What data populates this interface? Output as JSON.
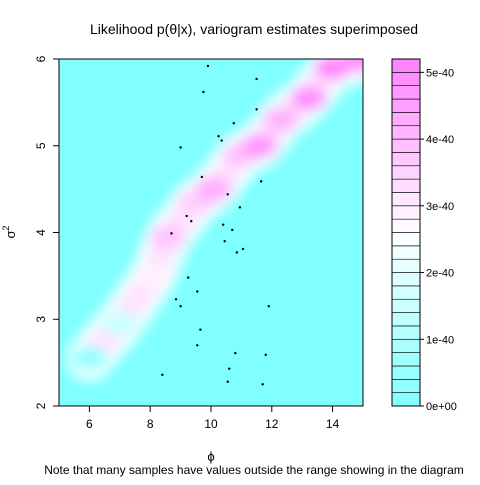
{
  "chart_data": {
    "type": "heatmap",
    "title": "Likelihood p(θ|x), variogram estimates superimposed",
    "xlabel": "ϕ",
    "ylabel_base": "σ",
    "ylabel_sup": "2",
    "footnote": "Note that many samples have values outside the range showing in the diagram",
    "xlim": [
      5,
      15
    ],
    "ylim": [
      2,
      6
    ],
    "x_ticks": [
      6,
      8,
      10,
      12,
      14
    ],
    "y_ticks": [
      2,
      3,
      4,
      5,
      6
    ],
    "zlim": [
      0,
      5.2e-40
    ],
    "color_ticks": [
      "0e+00",
      "1e-40",
      "2e-40",
      "3e-40",
      "4e-40",
      "5e-40"
    ],
    "color_tick_values": [
      0,
      1e-40,
      2e-40,
      3e-40,
      4e-40,
      5e-40
    ],
    "color_levels": 26,
    "colors": {
      "low": "#80FFFF",
      "mid": "#FFFFFF",
      "high": "#FF80FF"
    },
    "likelihood_ridge": [
      {
        "phi": 6.0,
        "sigma2": 2.55,
        "density": 4e-41
      },
      {
        "phi": 7.0,
        "sigma2": 2.95,
        "density": 1.5e-40
      },
      {
        "phi": 8.1,
        "sigma2": 3.5,
        "density": 2.9e-40
      },
      {
        "phi": 8.6,
        "sigma2": 3.95,
        "density": 3.8e-40
      },
      {
        "phi": 9.5,
        "sigma2": 4.35,
        "density": 3.6e-40
      },
      {
        "phi": 10.1,
        "sigma2": 4.5,
        "density": 4.3e-40
      },
      {
        "phi": 11.0,
        "sigma2": 4.9,
        "density": 3.9e-40
      },
      {
        "phi": 11.6,
        "sigma2": 5.0,
        "density": 4.7e-40
      },
      {
        "phi": 12.3,
        "sigma2": 5.3,
        "density": 4.2e-40
      },
      {
        "phi": 13.2,
        "sigma2": 5.55,
        "density": 4.9e-40
      },
      {
        "phi": 14.0,
        "sigma2": 5.9,
        "density": 5.1e-40
      },
      {
        "phi": 15.0,
        "sigma2": 6.0,
        "density": 5e-40
      }
    ],
    "points": [
      {
        "x": 9.9,
        "y": 5.92
      },
      {
        "x": 9.75,
        "y": 5.62
      },
      {
        "x": 11.5,
        "y": 5.77
      },
      {
        "x": 11.5,
        "y": 5.42
      },
      {
        "x": 10.75,
        "y": 5.26
      },
      {
        "x": 10.25,
        "y": 5.11
      },
      {
        "x": 10.35,
        "y": 5.06
      },
      {
        "x": 9.0,
        "y": 4.98
      },
      {
        "x": 9.7,
        "y": 4.64
      },
      {
        "x": 11.65,
        "y": 4.59
      },
      {
        "x": 10.55,
        "y": 4.44
      },
      {
        "x": 10.95,
        "y": 4.29
      },
      {
        "x": 9.2,
        "y": 4.19
      },
      {
        "x": 9.35,
        "y": 4.13
      },
      {
        "x": 10.4,
        "y": 4.09
      },
      {
        "x": 10.7,
        "y": 4.03
      },
      {
        "x": 8.7,
        "y": 3.99
      },
      {
        "x": 10.45,
        "y": 3.9
      },
      {
        "x": 11.05,
        "y": 3.81
      },
      {
        "x": 10.85,
        "y": 3.77
      },
      {
        "x": 9.25,
        "y": 3.48
      },
      {
        "x": 9.55,
        "y": 3.32
      },
      {
        "x": 8.85,
        "y": 3.23
      },
      {
        "x": 9.0,
        "y": 3.15
      },
      {
        "x": 11.9,
        "y": 3.15
      },
      {
        "x": 9.65,
        "y": 2.88
      },
      {
        "x": 9.55,
        "y": 2.7
      },
      {
        "x": 10.8,
        "y": 2.61
      },
      {
        "x": 11.8,
        "y": 2.59
      },
      {
        "x": 10.6,
        "y": 2.43
      },
      {
        "x": 8.4,
        "y": 2.36
      },
      {
        "x": 10.55,
        "y": 2.28
      },
      {
        "x": 11.7,
        "y": 2.25
      }
    ]
  }
}
